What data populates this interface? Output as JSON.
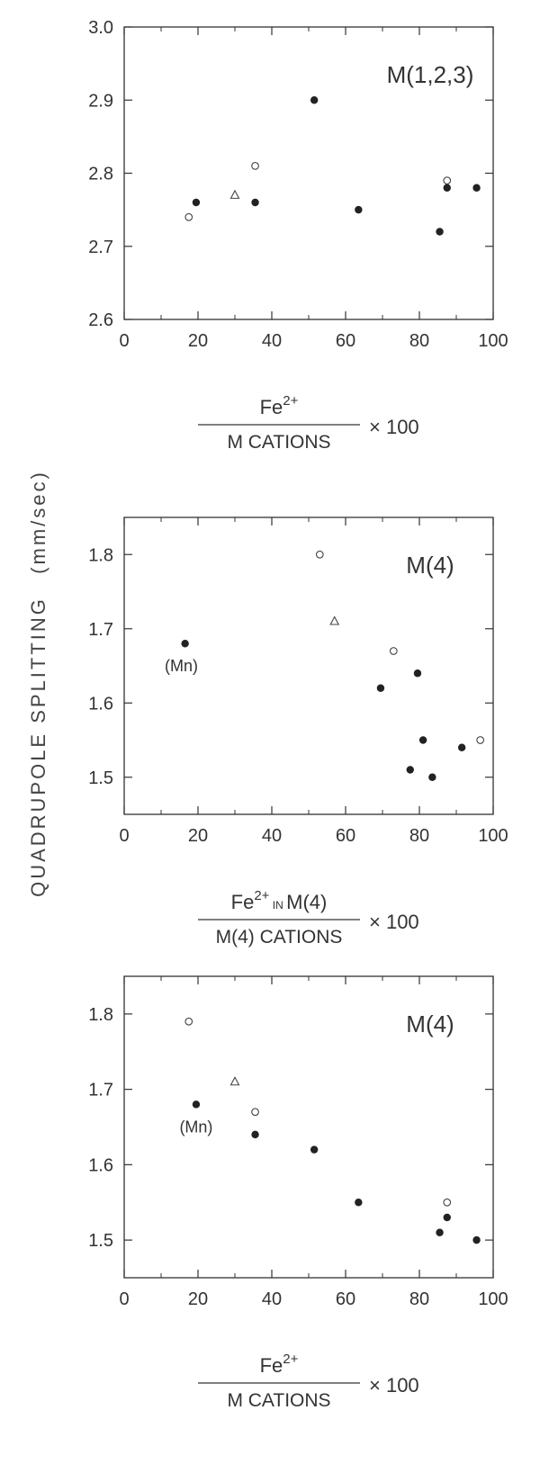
{
  "y_axis_label": {
    "text": "QUADRUPOLE   SPLITTING",
    "unit": "(mm/sec)"
  },
  "chart_data": [
    {
      "type": "scatter",
      "title": "M(1,2,3)",
      "xlim": [
        0,
        100
      ],
      "ylim": [
        2.6,
        3.0
      ],
      "x_ticks": [
        "0",
        "20",
        "40",
        "60",
        "80",
        "100"
      ],
      "y_ticks": [
        "2.6",
        "2.7",
        "2.8",
        "2.9",
        "3.0"
      ],
      "xlabel": {
        "numerator": "Fe",
        "superscript": "2+",
        "denominator": "M CATIONS",
        "multiplier": "× 100"
      },
      "series": [
        {
          "marker": "filled-circle",
          "points": [
            [
              19.5,
              2.76
            ],
            [
              35.5,
              2.76
            ],
            [
              51.5,
              2.9
            ],
            [
              63.5,
              2.75
            ],
            [
              85.5,
              2.72
            ],
            [
              87.5,
              2.78
            ],
            [
              95.5,
              2.78
            ]
          ]
        },
        {
          "marker": "open-circle",
          "points": [
            [
              17.5,
              2.74
            ],
            [
              35.5,
              2.81
            ],
            [
              87.5,
              2.79
            ]
          ]
        },
        {
          "marker": "open-triangle",
          "points": [
            [
              30.0,
              2.77
            ]
          ]
        }
      ],
      "annotations": []
    },
    {
      "type": "scatter",
      "title": "M(4)",
      "xlim": [
        0,
        100
      ],
      "ylim": [
        1.45,
        1.85
      ],
      "x_ticks": [
        "0",
        "20",
        "40",
        "60",
        "80",
        "100"
      ],
      "y_ticks": [
        "1.5",
        "1.6",
        "1.7",
        "1.8"
      ],
      "xlabel": {
        "numerator": "Fe",
        "superscript": "2+",
        "numerator_suffix_small": "IN",
        "numerator_suffix": "M(4)",
        "denominator": "M(4) CATIONS",
        "multiplier": "× 100"
      },
      "series": [
        {
          "marker": "filled-circle",
          "points": [
            [
              16.5,
              1.68
            ],
            [
              69.5,
              1.62
            ],
            [
              79.5,
              1.64
            ],
            [
              81.0,
              1.55
            ],
            [
              77.5,
              1.51
            ],
            [
              83.5,
              1.5
            ],
            [
              91.5,
              1.54
            ]
          ]
        },
        {
          "marker": "open-circle",
          "points": [
            [
              53.0,
              1.8
            ],
            [
              73.0,
              1.67
            ],
            [
              96.5,
              1.55
            ]
          ]
        },
        {
          "marker": "open-triangle",
          "points": [
            [
              57.0,
              1.71
            ]
          ]
        }
      ],
      "annotations": [
        {
          "text": "(Mn)",
          "x": 15.5,
          "y": 1.655
        }
      ]
    },
    {
      "type": "scatter",
      "title": "M(4)",
      "xlim": [
        0,
        100
      ],
      "ylim": [
        1.45,
        1.85
      ],
      "x_ticks": [
        "0",
        "20",
        "40",
        "60",
        "80",
        "100"
      ],
      "y_ticks": [
        "1.5",
        "1.6",
        "1.7",
        "1.8"
      ],
      "xlabel": {
        "numerator": "Fe",
        "superscript": "2+",
        "denominator": "M CATIONS",
        "multiplier": "× 100"
      },
      "series": [
        {
          "marker": "filled-circle",
          "points": [
            [
              19.5,
              1.68
            ],
            [
              35.5,
              1.64
            ],
            [
              51.5,
              1.62
            ],
            [
              63.5,
              1.55
            ],
            [
              85.5,
              1.51
            ],
            [
              87.5,
              1.53
            ],
            [
              95.5,
              1.5
            ]
          ]
        },
        {
          "marker": "open-circle",
          "points": [
            [
              17.5,
              1.79
            ],
            [
              35.5,
              1.67
            ],
            [
              87.5,
              1.55
            ]
          ]
        },
        {
          "marker": "open-triangle",
          "points": [
            [
              30.0,
              1.71
            ]
          ]
        }
      ],
      "annotations": [
        {
          "text": "(Mn)",
          "x": 19.5,
          "y": 1.655
        }
      ]
    }
  ]
}
